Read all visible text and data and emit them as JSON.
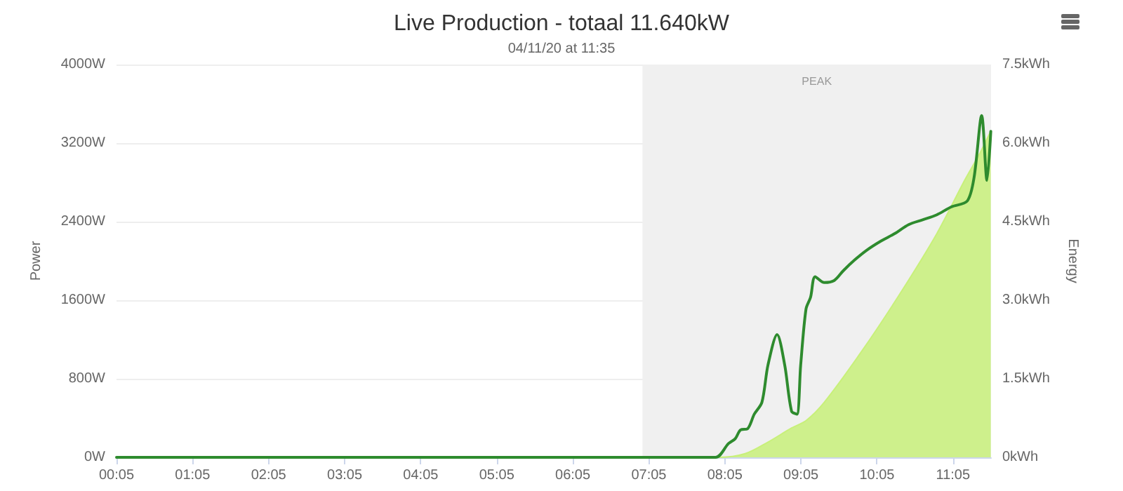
{
  "chart_data": {
    "type": "line",
    "title": "Live Production - totaal 11.640kW",
    "subtitle": "04/11/20 at 11:35",
    "ylabel": "Power",
    "y2label": "Energy",
    "xlim": [
      0.0833,
      11.5833
    ],
    "xticks": [
      {
        "value": 0.0833,
        "label": "00:05"
      },
      {
        "value": 1.0833,
        "label": "01:05"
      },
      {
        "value": 2.0833,
        "label": "02:05"
      },
      {
        "value": 3.0833,
        "label": "03:05"
      },
      {
        "value": 4.0833,
        "label": "04:05"
      },
      {
        "value": 5.0833,
        "label": "05:05"
      },
      {
        "value": 6.0833,
        "label": "06:05"
      },
      {
        "value": 7.0833,
        "label": "07:05"
      },
      {
        "value": 8.0833,
        "label": "08:05"
      },
      {
        "value": 9.0833,
        "label": "09:05"
      },
      {
        "value": 10.0833,
        "label": "10:05"
      },
      {
        "value": 11.0833,
        "label": "11:05"
      }
    ],
    "ylim": [
      0,
      4000
    ],
    "yticks": [
      {
        "value": 0,
        "label": "0W"
      },
      {
        "value": 800,
        "label": "800W"
      },
      {
        "value": 1600,
        "label": "1600W"
      },
      {
        "value": 2400,
        "label": "2400W"
      },
      {
        "value": 3200,
        "label": "3200W"
      },
      {
        "value": 4000,
        "label": "4000W"
      }
    ],
    "y2lim": [
      0,
      7.5
    ],
    "y2ticks": [
      {
        "value": 0,
        "label": "0kWh"
      },
      {
        "value": 1.5,
        "label": "1.5kWh"
      },
      {
        "value": 3,
        "label": "3.0kWh"
      },
      {
        "value": 4.5,
        "label": "4.5kWh"
      },
      {
        "value": 6,
        "label": "6.0kWh"
      },
      {
        "value": 7.5,
        "label": "7.5kWh"
      }
    ],
    "grid": "y",
    "marker": "none",
    "line_style": "solid",
    "bands": [
      {
        "axis": "x",
        "from": 7.0,
        "to": 11.5833,
        "label": "PEAK",
        "color": "#f0f0f0"
      }
    ],
    "series": [
      {
        "type": "area",
        "axis": "y2",
        "color": "#c8f07a",
        "x": [
          0.0833,
          8.0,
          8.35,
          8.65,
          8.96,
          9.15,
          9.39,
          9.89,
          10.38,
          10.87,
          11.24,
          11.43,
          11.58
        ],
        "values": [
          0,
          0,
          0.07,
          0.29,
          0.56,
          0.7,
          1.05,
          2.04,
          3.11,
          4.27,
          5.3,
          5.79,
          6.23
        ]
      },
      {
        "color": "#2e8b2e",
        "x": [
          0.0833,
          7.96,
          8.13,
          8.22,
          8.29,
          8.38,
          8.47,
          8.57,
          8.65,
          8.77,
          8.87,
          8.96,
          9.03,
          9.08,
          9.15,
          9.21,
          9.27,
          9.39,
          9.52,
          9.64,
          9.79,
          9.95,
          10.13,
          10.32,
          10.5,
          10.69,
          10.87,
          11.06,
          11.27,
          11.36,
          11.46,
          11.53,
          11.58
        ],
        "values": [
          0,
          0,
          140,
          190,
          280,
          290,
          440,
          560,
          940,
          1250,
          940,
          470,
          440,
          940,
          1510,
          1630,
          1840,
          1780,
          1800,
          1900,
          2010,
          2110,
          2200,
          2280,
          2370,
          2420,
          2470,
          2550,
          2610,
          2850,
          3480,
          2820,
          3320
        ]
      }
    ]
  }
}
